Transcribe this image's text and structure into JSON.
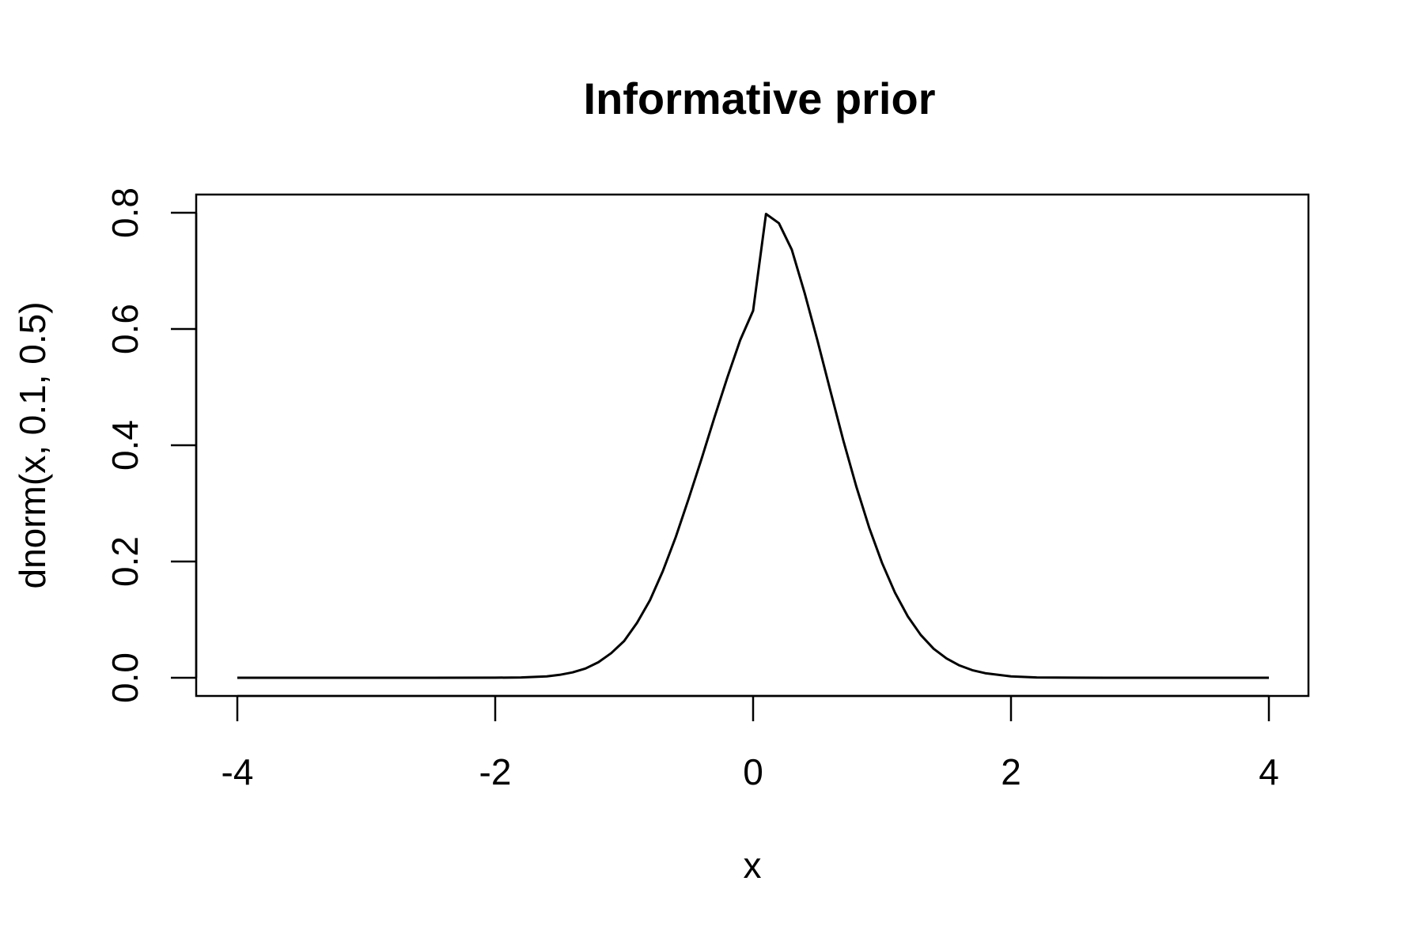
{
  "chart_data": {
    "type": "line",
    "title": "Informative prior",
    "xlabel": "x",
    "ylabel": "dnorm(x, 0.1, 0.5)",
    "xlim": [
      -4,
      4
    ],
    "ylim": [
      0,
      0.8
    ],
    "x_ticks": [
      -4,
      -2,
      0,
      2,
      4
    ],
    "x_tick_labels": [
      "-4",
      "-2",
      "0",
      "2",
      "4"
    ],
    "y_ticks": [
      0,
      0.2,
      0.4,
      0.6,
      0.8
    ],
    "y_tick_labels": [
      "0.0",
      "0.2",
      "0.4",
      "0.6",
      "0.8"
    ],
    "grid": false,
    "legend": "none",
    "line_color": "#000000",
    "series": [
      {
        "x": [
          -4.0,
          -3.5,
          -3.0,
          -2.5,
          -2.0,
          -1.8,
          -1.6,
          -1.5,
          -1.4,
          -1.3,
          -1.2,
          -1.1,
          -1.0,
          -0.9,
          -0.8,
          -0.7,
          -0.6,
          -0.5,
          -0.4,
          -0.3,
          -0.2,
          -0.1,
          0.0,
          0.1,
          0.2,
          0.3,
          0.4,
          0.5,
          0.6,
          0.7,
          0.8,
          0.9,
          1.0,
          1.1,
          1.2,
          1.3,
          1.4,
          1.5,
          1.6,
          1.7,
          1.8,
          2.0,
          2.2,
          2.5,
          3.0,
          3.5,
          4.0
        ],
        "y": [
          0.0,
          0.0,
          0.0,
          0.0,
          0.0001,
          0.0006,
          0.0025,
          0.005,
          0.0092,
          0.0159,
          0.0266,
          0.0425,
          0.0632,
          0.0946,
          0.1333,
          0.1835,
          0.2421,
          0.3079,
          0.3765,
          0.4477,
          0.5164,
          0.5809,
          0.6314,
          0.7979,
          0.7821,
          0.7365,
          0.6617,
          0.5794,
          0.4931,
          0.408,
          0.3292,
          0.2584,
          0.1975,
          0.1465,
          0.1054,
          0.0737,
          0.05,
          0.0332,
          0.0212,
          0.0131,
          0.0079,
          0.0025,
          0.0006,
          0.0001,
          0.0,
          0.0,
          0.0
        ]
      }
    ]
  }
}
